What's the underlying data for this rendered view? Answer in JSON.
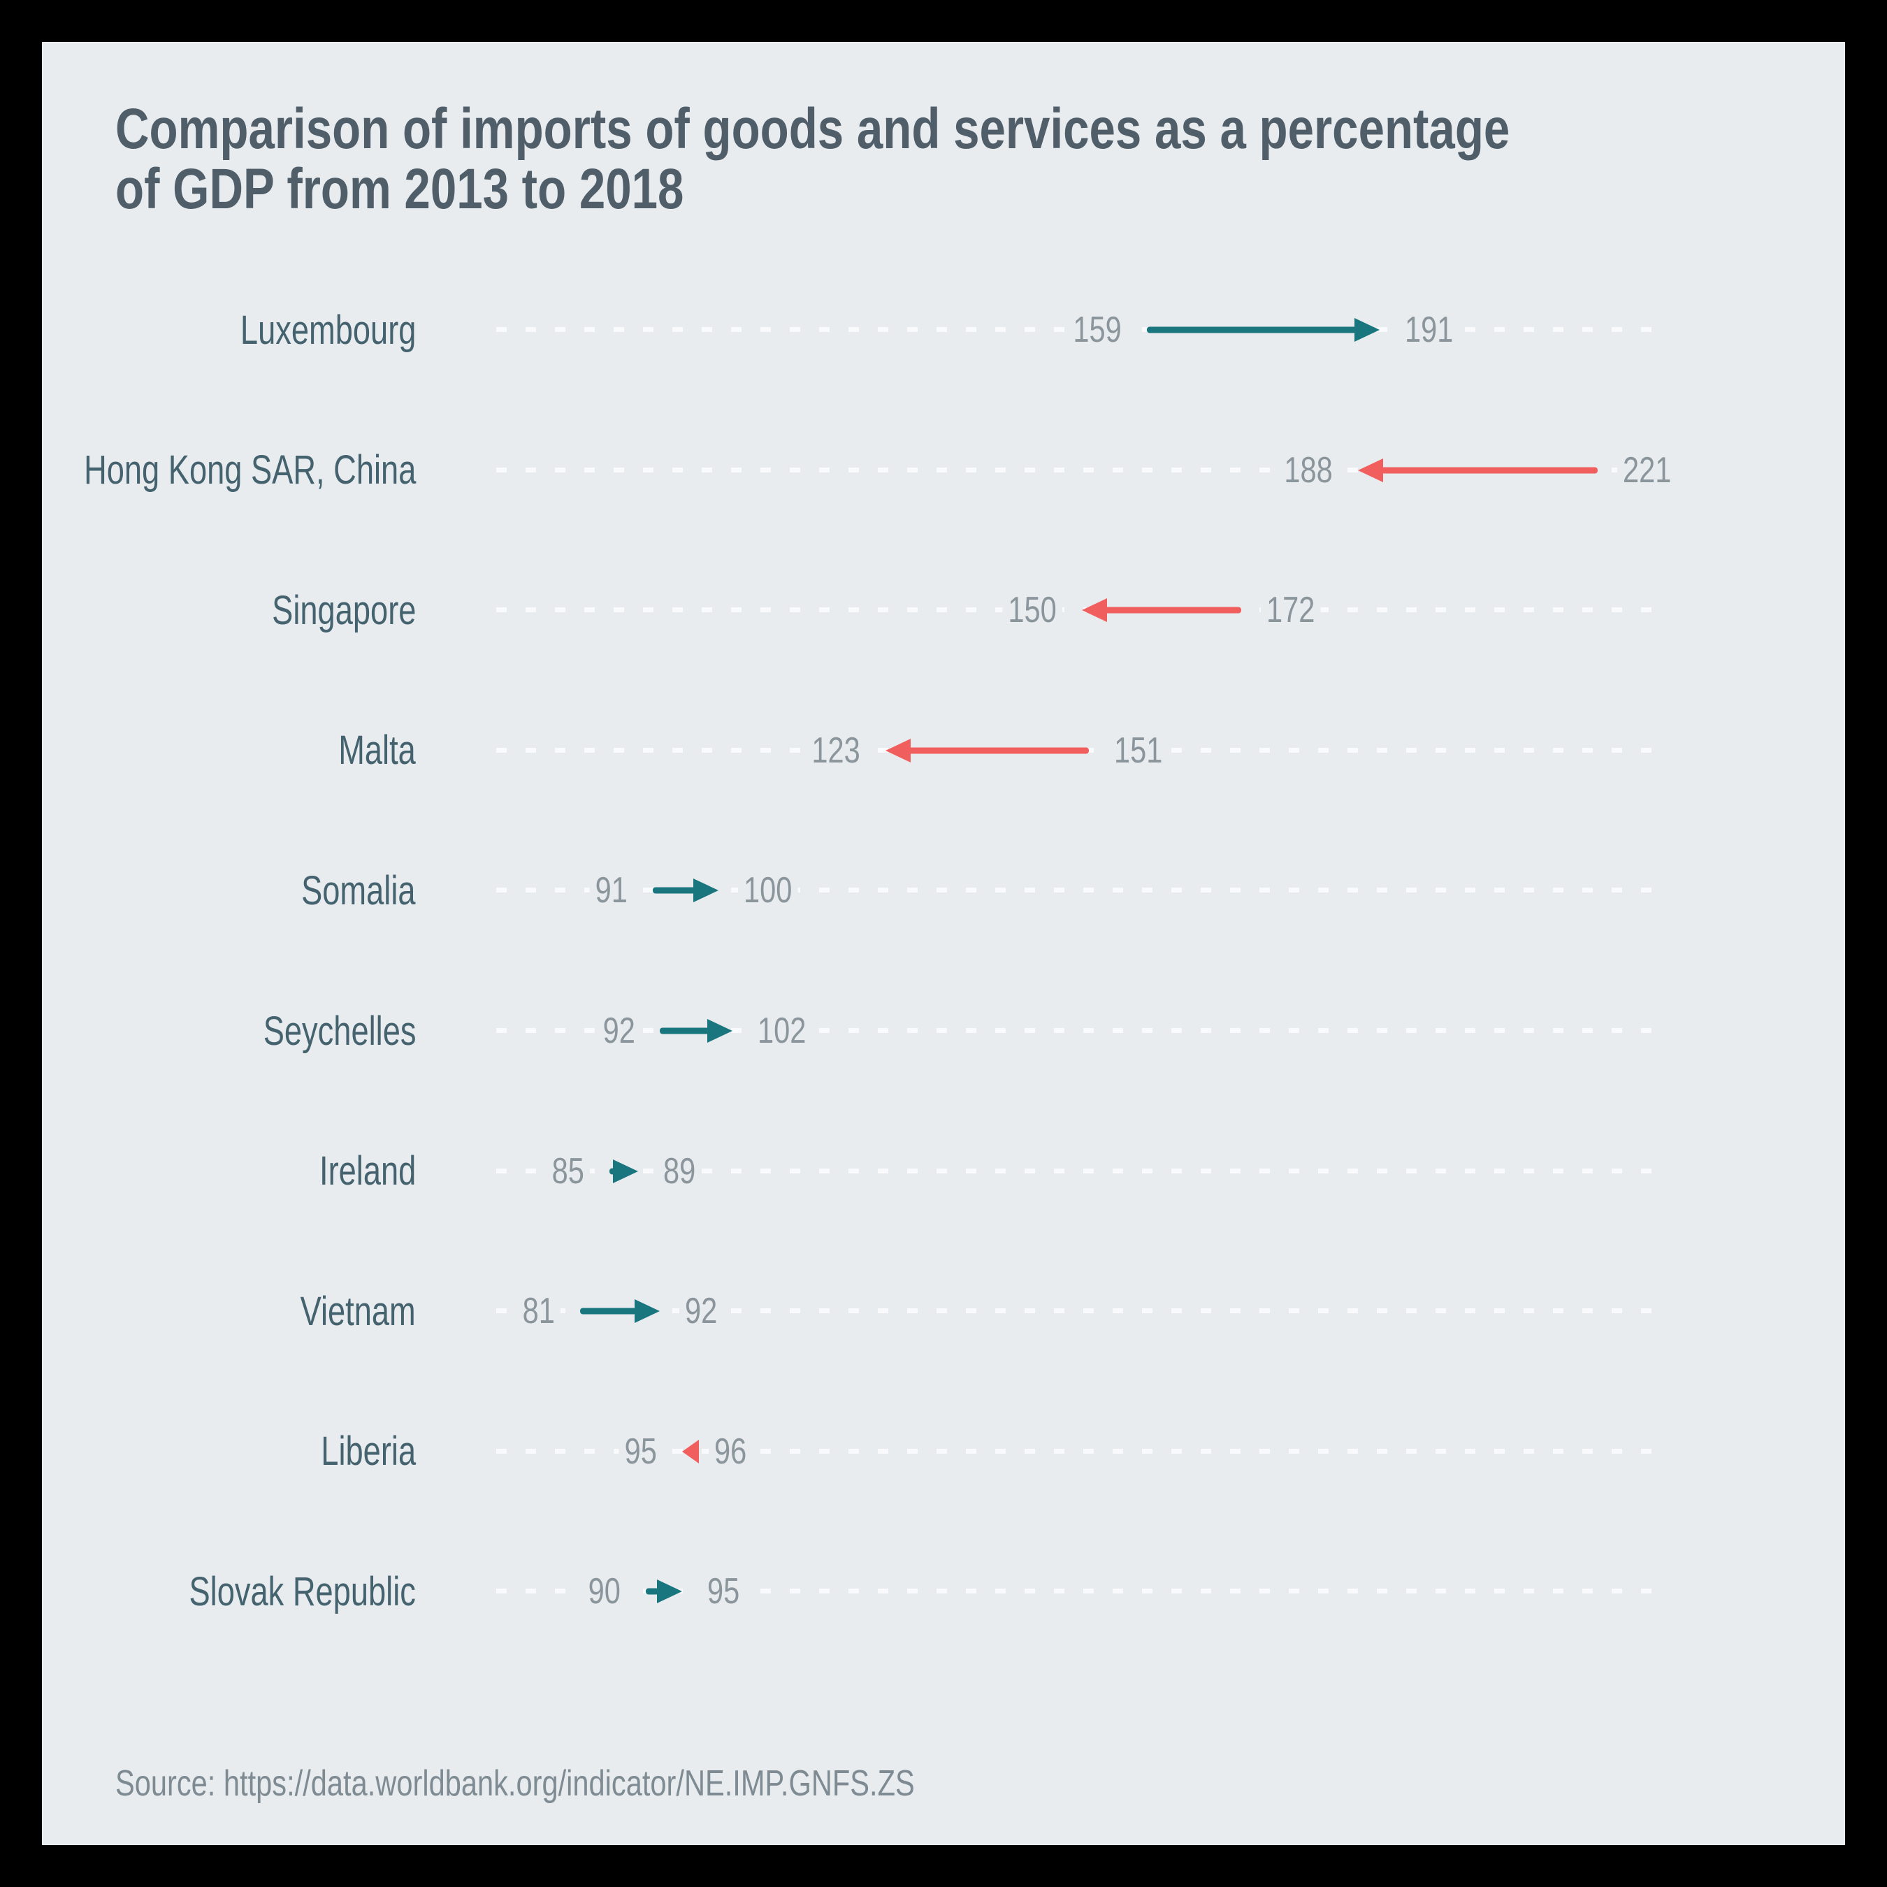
{
  "title_lines": [
    "Comparison of imports of goods and services as a percentage",
    "of GDP from 2013 to 2018"
  ],
  "source_caption": "Source: https://data.worldbank.org/indicator/NE.IMP.GNFS.ZS",
  "colors": {
    "frame": "#000000",
    "panel_background": "#e8ecef",
    "title_text": "#4f5e69",
    "category_label_text": "#45626f",
    "value_label_text": "#8b959c",
    "increase_arrow": "#19757e",
    "decrease_arrow": "#f15e5e",
    "dash_line": "#f8fafb"
  },
  "chart_data": {
    "type": "arrow-dumbbell",
    "title": "Comparison of imports of goods and services as a percentage of GDP from 2013 to 2018",
    "period": {
      "start_year": 2013,
      "end_year": 2018
    },
    "unit": "percent of GDP",
    "value_range": [
      81,
      221
    ],
    "grid": "dashed-horizontal-row-lines",
    "legend": "none",
    "categories": [
      "Luxembourg",
      "Hong Kong SAR, China",
      "Singapore",
      "Malta",
      "Somalia",
      "Seychelles",
      "Ireland",
      "Vietnam",
      "Liberia",
      "Slovak Republic"
    ],
    "series": [
      {
        "name": "Luxembourg",
        "start": 159,
        "end": 191,
        "change": "increase"
      },
      {
        "name": "Hong Kong SAR, China",
        "start": 221,
        "end": 188,
        "change": "decrease"
      },
      {
        "name": "Singapore",
        "start": 172,
        "end": 150,
        "change": "decrease"
      },
      {
        "name": "Malta",
        "start": 151,
        "end": 123,
        "change": "decrease"
      },
      {
        "name": "Somalia",
        "start": 91,
        "end": 100,
        "change": "increase"
      },
      {
        "name": "Seychelles",
        "start": 92,
        "end": 102,
        "change": "increase"
      },
      {
        "name": "Ireland",
        "start": 85,
        "end": 89,
        "change": "increase"
      },
      {
        "name": "Vietnam",
        "start": 81,
        "end": 92,
        "change": "increase"
      },
      {
        "name": "Liberia",
        "start": 96,
        "end": 95,
        "change": "decrease"
      },
      {
        "name": "Slovak Republic",
        "start": 90,
        "end": 95,
        "change": "increase"
      }
    ]
  }
}
